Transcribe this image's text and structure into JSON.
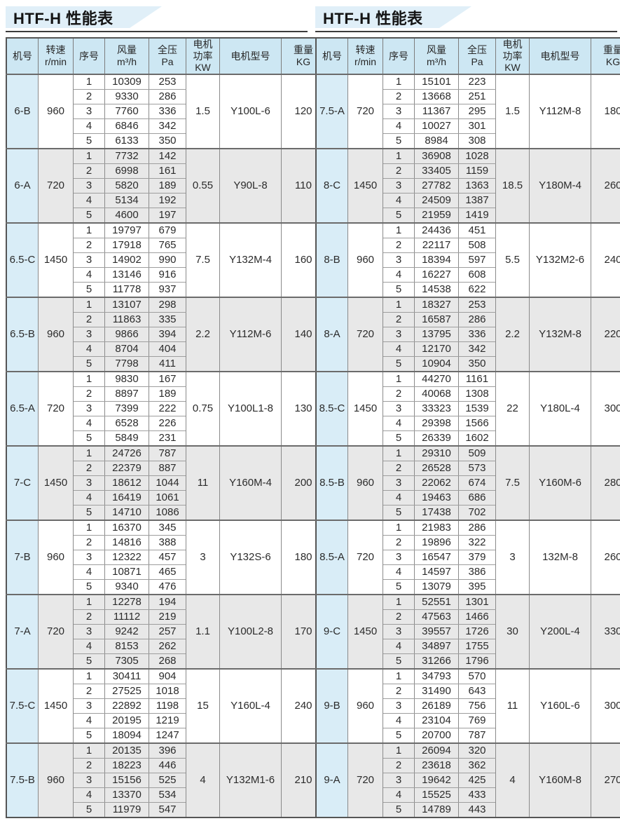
{
  "colors": {
    "title_flag_bg": "#e0eff8",
    "header_bg": "#cde7f3",
    "model_column_bg": "#d9edf7",
    "alt_group_bg": "#e8e8e8",
    "border": "#8a8a8a",
    "title_rule": "#3c3c3c"
  },
  "columns": [
    {
      "key": "model",
      "label": "机号"
    },
    {
      "key": "speed",
      "label": "转速\nr/min"
    },
    {
      "key": "seq",
      "label": "序号"
    },
    {
      "key": "flow",
      "label": "风量\nm³/h"
    },
    {
      "key": "pressure",
      "label": "全压\nPa"
    },
    {
      "key": "power",
      "label": "电机\n功率\nKW"
    },
    {
      "key": "motor",
      "label": "电机型号"
    },
    {
      "key": "weight",
      "label": "重量\nKG"
    }
  ],
  "tables": [
    {
      "title": "HTF-H 性能表",
      "groups": [
        {
          "model": "6-B",
          "speed": "960",
          "power": "1.5",
          "motor": "Y100L-6",
          "weight": "120",
          "rows": [
            [
              1,
              10309,
              253
            ],
            [
              2,
              9330,
              286
            ],
            [
              3,
              7760,
              336
            ],
            [
              4,
              6846,
              342
            ],
            [
              5,
              6133,
              350
            ]
          ]
        },
        {
          "model": "6-A",
          "speed": "720",
          "power": "0.55",
          "motor": "Y90L-8",
          "weight": "110",
          "rows": [
            [
              1,
              7732,
              142
            ],
            [
              2,
              6998,
              161
            ],
            [
              3,
              5820,
              189
            ],
            [
              4,
              5134,
              192
            ],
            [
              5,
              4600,
              197
            ]
          ]
        },
        {
          "model": "6.5-C",
          "speed": "1450",
          "power": "7.5",
          "motor": "Y132M-4",
          "weight": "160",
          "rows": [
            [
              1,
              19797,
              679
            ],
            [
              2,
              17918,
              765
            ],
            [
              3,
              14902,
              990
            ],
            [
              4,
              13146,
              916
            ],
            [
              5,
              11778,
              937
            ]
          ]
        },
        {
          "model": "6.5-B",
          "speed": "960",
          "power": "2.2",
          "motor": "Y112M-6",
          "weight": "140",
          "rows": [
            [
              1,
              13107,
              298
            ],
            [
              2,
              11863,
              335
            ],
            [
              3,
              9866,
              394
            ],
            [
              4,
              8704,
              404
            ],
            [
              5,
              7798,
              411
            ]
          ]
        },
        {
          "model": "6.5-A",
          "speed": "720",
          "power": "0.75",
          "motor": "Y100L1-8",
          "weight": "130",
          "rows": [
            [
              1,
              9830,
              167
            ],
            [
              2,
              8897,
              189
            ],
            [
              3,
              7399,
              222
            ],
            [
              4,
              6528,
              226
            ],
            [
              5,
              5849,
              231
            ]
          ]
        },
        {
          "model": "7-C",
          "speed": "1450",
          "power": "11",
          "motor": "Y160M-4",
          "weight": "200",
          "rows": [
            [
              1,
              24726,
              787
            ],
            [
              2,
              22379,
              887
            ],
            [
              3,
              18612,
              1044
            ],
            [
              4,
              16419,
              1061
            ],
            [
              5,
              14710,
              1086
            ]
          ]
        },
        {
          "model": "7-B",
          "speed": "960",
          "power": "3",
          "motor": "Y132S-6",
          "weight": "180",
          "rows": [
            [
              1,
              16370,
              345
            ],
            [
              2,
              14816,
              388
            ],
            [
              3,
              12322,
              457
            ],
            [
              4,
              10871,
              465
            ],
            [
              5,
              9340,
              476
            ]
          ]
        },
        {
          "model": "7-A",
          "speed": "720",
          "power": "1.1",
          "motor": "Y100L2-8",
          "weight": "170",
          "rows": [
            [
              1,
              12278,
              194
            ],
            [
              2,
              11112,
              219
            ],
            [
              3,
              9242,
              257
            ],
            [
              4,
              8153,
              262
            ],
            [
              5,
              7305,
              268
            ]
          ]
        },
        {
          "model": "7.5-C",
          "speed": "1450",
          "power": "15",
          "motor": "Y160L-4",
          "weight": "240",
          "rows": [
            [
              1,
              30411,
              904
            ],
            [
              2,
              27525,
              1018
            ],
            [
              3,
              22892,
              1198
            ],
            [
              4,
              20195,
              1219
            ],
            [
              5,
              18094,
              1247
            ]
          ]
        },
        {
          "model": "7.5-B",
          "speed": "960",
          "power": "4",
          "motor": "Y132M1-6",
          "weight": "210",
          "rows": [
            [
              1,
              20135,
              396
            ],
            [
              2,
              18223,
              446
            ],
            [
              3,
              15156,
              525
            ],
            [
              4,
              13370,
              534
            ],
            [
              5,
              11979,
              547
            ]
          ]
        }
      ]
    },
    {
      "title": "HTF-H 性能表",
      "groups": [
        {
          "model": "7.5-A",
          "speed": "720",
          "power": "1.5",
          "motor": "Y112M-8",
          "weight": "180",
          "rows": [
            [
              1,
              15101,
              223
            ],
            [
              2,
              13668,
              251
            ],
            [
              3,
              11367,
              295
            ],
            [
              4,
              10027,
              301
            ],
            [
              5,
              8984,
              308
            ]
          ]
        },
        {
          "model": "8-C",
          "speed": "1450",
          "power": "18.5",
          "motor": "Y180M-4",
          "weight": "260",
          "rows": [
            [
              1,
              36908,
              1028
            ],
            [
              2,
              33405,
              1159
            ],
            [
              3,
              27782,
              1363
            ],
            [
              4,
              24509,
              1387
            ],
            [
              5,
              21959,
              1419
            ]
          ]
        },
        {
          "model": "8-B",
          "speed": "960",
          "power": "5.5",
          "motor": "Y132M2-6",
          "weight": "240",
          "rows": [
            [
              1,
              24436,
              451
            ],
            [
              2,
              22117,
              508
            ],
            [
              3,
              18394,
              597
            ],
            [
              4,
              16227,
              608
            ],
            [
              5,
              14538,
              622
            ]
          ]
        },
        {
          "model": "8-A",
          "speed": "720",
          "power": "2.2",
          "motor": "Y132M-8",
          "weight": "220",
          "rows": [
            [
              1,
              18327,
              253
            ],
            [
              2,
              16587,
              286
            ],
            [
              3,
              13795,
              336
            ],
            [
              4,
              12170,
              342
            ],
            [
              5,
              10904,
              350
            ]
          ]
        },
        {
          "model": "8.5-C",
          "speed": "1450",
          "power": "22",
          "motor": "Y180L-4",
          "weight": "300",
          "rows": [
            [
              1,
              44270,
              1161
            ],
            [
              2,
              40068,
              1308
            ],
            [
              3,
              33323,
              1539
            ],
            [
              4,
              29398,
              1566
            ],
            [
              5,
              26339,
              1602
            ]
          ]
        },
        {
          "model": "8.5-B",
          "speed": "960",
          "power": "7.5",
          "motor": "Y160M-6",
          "weight": "280",
          "rows": [
            [
              1,
              29310,
              509
            ],
            [
              2,
              26528,
              573
            ],
            [
              3,
              22062,
              674
            ],
            [
              4,
              19463,
              686
            ],
            [
              5,
              17438,
              702
            ]
          ]
        },
        {
          "model": "8.5-A",
          "speed": "720",
          "power": "3",
          "motor": "132M-8",
          "weight": "260",
          "rows": [
            [
              1,
              21983,
              286
            ],
            [
              2,
              19896,
              322
            ],
            [
              3,
              16547,
              379
            ],
            [
              4,
              14597,
              386
            ],
            [
              5,
              13079,
              395
            ]
          ]
        },
        {
          "model": "9-C",
          "speed": "1450",
          "power": "30",
          "motor": "Y200L-4",
          "weight": "330",
          "rows": [
            [
              1,
              52551,
              1301
            ],
            [
              2,
              47563,
              1466
            ],
            [
              3,
              39557,
              1726
            ],
            [
              4,
              34897,
              1755
            ],
            [
              5,
              31266,
              1796
            ]
          ]
        },
        {
          "model": "9-B",
          "speed": "960",
          "power": "11",
          "motor": "Y160L-6",
          "weight": "300",
          "rows": [
            [
              1,
              34793,
              570
            ],
            [
              2,
              31490,
              643
            ],
            [
              3,
              26189,
              756
            ],
            [
              4,
              23104,
              769
            ],
            [
              5,
              20700,
              787
            ]
          ]
        },
        {
          "model": "9-A",
          "speed": "720",
          "power": "4",
          "motor": "Y160M-8",
          "weight": "270",
          "rows": [
            [
              1,
              26094,
              320
            ],
            [
              2,
              23618,
              362
            ],
            [
              3,
              19642,
              425
            ],
            [
              4,
              15525,
              433
            ],
            [
              5,
              14789,
              443
            ]
          ]
        }
      ]
    }
  ]
}
